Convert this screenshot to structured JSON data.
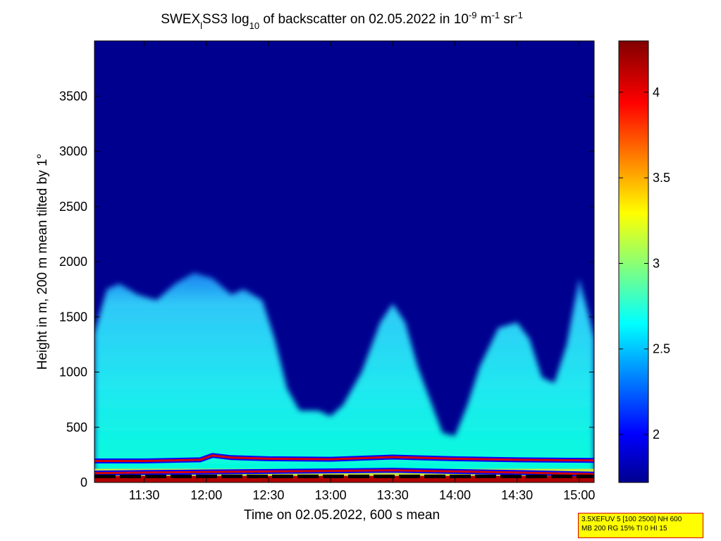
{
  "chart_data": {
    "type": "heatmap",
    "title": {
      "part1": "SWEX",
      "sub1": "l",
      "part2": "SS3 log",
      "sub2": "10",
      "part3": " of backscatter on 02.05.2022 in 10",
      "sup1": "-9",
      "part4": " m",
      "sup2": "-1",
      "part5": " sr",
      "sup3": "-1"
    },
    "xlabel": "Time on 02.05.2022, 600 s mean",
    "ylabel": "Height in m, 200 m mean tilted by 1°",
    "x_ticks": [
      "11:30",
      "12:00",
      "12:30",
      "13:00",
      "13:30",
      "14:00",
      "14:30",
      "15:00"
    ],
    "x_tick_hours": [
      11.5,
      12.0,
      12.5,
      13.0,
      13.5,
      14.0,
      14.5,
      15.0
    ],
    "xlim_hours": [
      11.1,
      15.12
    ],
    "y_ticks": [
      0,
      500,
      1000,
      1500,
      2000,
      2500,
      3000,
      3500
    ],
    "ylim": [
      0,
      4000
    ],
    "colorbar": {
      "ticks": [
        2,
        2.5,
        3,
        3.5,
        4
      ],
      "tick_labels": [
        "2",
        "2.5",
        "3",
        "3.5",
        "4"
      ],
      "range": [
        1.72,
        4.3
      ],
      "colormap": "jet"
    },
    "background_value": 1.75,
    "boundary_layer_top_m": [
      [
        11.1,
        1350
      ],
      [
        11.2,
        1750
      ],
      [
        11.3,
        1800
      ],
      [
        11.45,
        1700
      ],
      [
        11.6,
        1650
      ],
      [
        11.75,
        1800
      ],
      [
        11.9,
        1900
      ],
      [
        12.05,
        1850
      ],
      [
        12.2,
        1700
      ],
      [
        12.3,
        1750
      ],
      [
        12.45,
        1650
      ],
      [
        12.55,
        1300
      ],
      [
        12.65,
        850
      ],
      [
        12.75,
        650
      ],
      [
        12.9,
        650
      ],
      [
        13.0,
        600
      ],
      [
        13.1,
        700
      ],
      [
        13.25,
        1000
      ],
      [
        13.4,
        1450
      ],
      [
        13.5,
        1620
      ],
      [
        13.6,
        1450
      ],
      [
        13.7,
        1050
      ],
      [
        13.8,
        750
      ],
      [
        13.9,
        450
      ],
      [
        14.0,
        420
      ],
      [
        14.1,
        700
      ],
      [
        14.2,
        1050
      ],
      [
        14.35,
        1400
      ],
      [
        14.5,
        1450
      ],
      [
        14.6,
        1300
      ],
      [
        14.7,
        950
      ],
      [
        14.8,
        900
      ],
      [
        14.9,
        1250
      ],
      [
        15.0,
        1850
      ],
      [
        15.08,
        1500
      ],
      [
        15.12,
        1300
      ]
    ],
    "layer_intensity": 2.55,
    "lines": [
      {
        "name": "",
        "color": "#d40000",
        "outline": "#0000ff",
        "values_m": [
          [
            11.1,
            195
          ],
          [
            11.5,
            195
          ],
          [
            11.95,
            205
          ],
          [
            12.05,
            245
          ],
          [
            12.2,
            225
          ],
          [
            12.5,
            215
          ],
          [
            13.0,
            210
          ],
          [
            13.5,
            230
          ],
          [
            14.0,
            215
          ],
          [
            14.5,
            205
          ],
          [
            15.12,
            200
          ]
        ]
      },
      {
        "name": "",
        "color": "#d40000",
        "outline": "#0000ff",
        "values_m": [
          [
            11.1,
            85
          ],
          [
            11.5,
            90
          ],
          [
            12.0,
            95
          ],
          [
            12.5,
            100
          ],
          [
            13.0,
            105
          ],
          [
            13.5,
            110
          ],
          [
            14.0,
            100
          ],
          [
            14.5,
            90
          ],
          [
            15.12,
            75
          ]
        ]
      }
    ],
    "surface_band_m": [
      0,
      60
    ],
    "dashed_line_m": 55
  },
  "info_box": {
    "line1": "3.5XEFUV 5 [100 2500] NH 600",
    "line2": "MB 200 RG 15% TI 0 HI 15"
  }
}
